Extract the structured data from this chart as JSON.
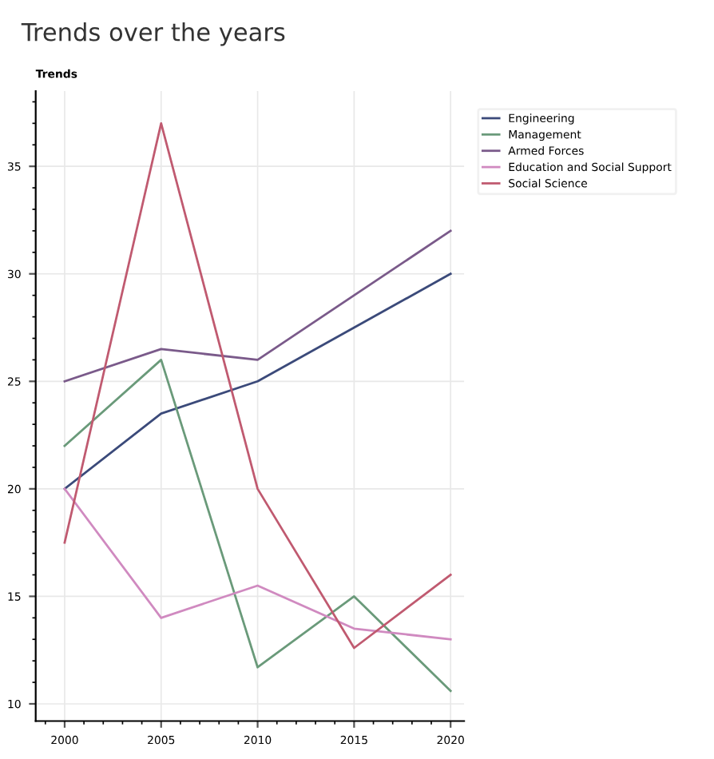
{
  "chart_data": {
    "type": "line",
    "title": "Trends",
    "subtitle": "Trends over the years",
    "x": [
      2000,
      2005,
      2010,
      2015,
      2020
    ],
    "series": [
      {
        "name": "Engineering",
        "color": "#3b4a7a",
        "values": [
          20,
          23.5,
          25,
          27.5,
          30
        ]
      },
      {
        "name": "Management",
        "color": "#6a9a7a",
        "values": [
          22,
          26,
          11.7,
          15,
          10.6
        ]
      },
      {
        "name": "Armed Forces",
        "color": "#7a5a8a",
        "values": [
          25,
          26.5,
          26,
          29,
          32
        ]
      },
      {
        "name": "Education and Social Support",
        "color": "#d08ac0",
        "values": [
          20,
          14,
          15.5,
          13.5,
          13
        ]
      },
      {
        "name": "Social Science",
        "color": "#c05a70",
        "values": [
          17.5,
          37,
          20,
          12.6,
          16
        ]
      }
    ],
    "xlim": [
      1998.5,
      2020.7
    ],
    "ylim": [
      9.2,
      38.5
    ],
    "xticks": [
      2000,
      2005,
      2010,
      2015,
      2020
    ],
    "yticks": [
      10,
      15,
      20,
      25,
      30,
      35
    ],
    "grid": true,
    "legend": "top right",
    "marker": "none",
    "line_style": "solid"
  }
}
